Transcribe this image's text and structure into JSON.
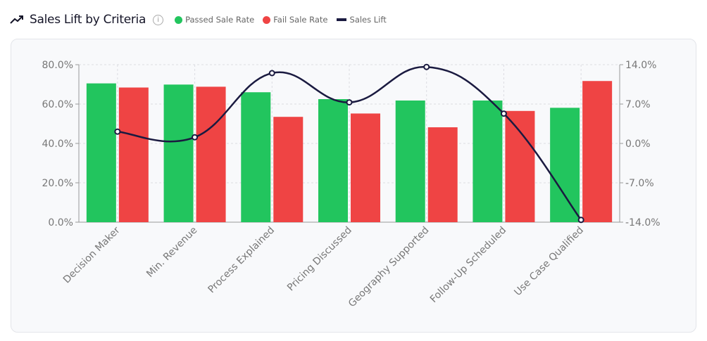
{
  "header": {
    "title": "Sales Lift by Criteria",
    "icon": "trending-up-icon",
    "info_icon": "info-icon"
  },
  "legend": [
    {
      "label": "Passed Sale Rate",
      "color": "#22c55e"
    },
    {
      "label": "Fail Sale Rate",
      "color": "#ef4444"
    },
    {
      "label": "Sales Lift",
      "color": "#1a1a40"
    }
  ],
  "chart_data": {
    "type": "bar",
    "categories": [
      "Decision Maker",
      "Min. Revenue",
      "Process Explained",
      "Pricing Discussed",
      "Geography Supported",
      "Follow-Up Scheduled",
      "Use Case Qualified"
    ],
    "series": [
      {
        "name": "Passed Sale Rate",
        "axis": "left",
        "type": "bar",
        "color": "#22c55e",
        "values": [
          70.5,
          69.9,
          66.0,
          62.5,
          61.8,
          61.8,
          58.1
        ]
      },
      {
        "name": "Fail Sale Rate",
        "axis": "left",
        "type": "bar",
        "color": "#ef4444",
        "values": [
          68.4,
          68.8,
          53.5,
          55.2,
          48.2,
          56.5,
          71.7
        ]
      },
      {
        "name": "Sales Lift",
        "axis": "right",
        "type": "line",
        "color": "#1a1a40",
        "values": [
          2.1,
          1.1,
          12.5,
          7.3,
          13.6,
          5.3,
          -13.6
        ]
      }
    ],
    "left_axis": {
      "ylim": [
        0,
        80
      ],
      "ticks": [
        "0.0%",
        "20.0%",
        "40.0%",
        "60.0%",
        "80.0%"
      ]
    },
    "right_axis": {
      "ylim": [
        -14,
        14
      ],
      "ticks": [
        "-14.0%",
        "-7.0%",
        "0.0%",
        "7.0%",
        "14.0%"
      ]
    },
    "grid": true,
    "legend_position": "top"
  }
}
